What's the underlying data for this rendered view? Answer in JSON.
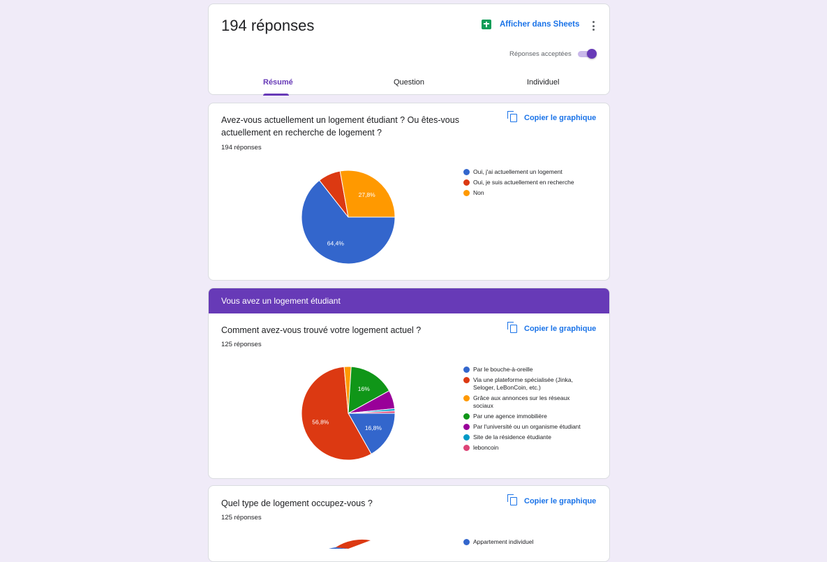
{
  "header": {
    "responses_title": "194 réponses",
    "sheets_label": "Afficher dans Sheets",
    "accept_label": "Réponses acceptées",
    "tabs": [
      "Résumé",
      "Question",
      "Individuel"
    ]
  },
  "copy_label": "Copier le graphique",
  "section_banner": "Vous avez un logement étudiant",
  "questions": [
    {
      "title_line1": "Avez-vous actuellement un logement étudiant ? Ou êtes-vous",
      "title_line2": "actuellement en recherche de logement ?",
      "count": "194 réponses",
      "legend": [
        "Oui, j'ai actuellement un logement",
        "Oui, je suis actuellement en recherche",
        "Non"
      ]
    },
    {
      "title": "Comment avez-vous trouvé votre logement actuel ?",
      "count": "125 réponses",
      "legend": [
        "Par le bouche-à-oreille",
        "Via une plateforme spécialisée (Jinka, Seloger, LeBonCoin, etc.)",
        "Grâce aux annonces sur les réseaux sociaux",
        "Par une agence immobilière",
        "Par l'université ou un organisme étudiant",
        "Site de la résidence étudiante",
        "leboncoin"
      ]
    },
    {
      "title": "Quel type de logement occupez-vous ?",
      "count": "125 réponses",
      "legend": [
        "Appartement individuel"
      ]
    }
  ],
  "chart_data": [
    {
      "type": "pie",
      "categories": [
        "Oui, j'ai actuellement un logement",
        "Oui, je suis actuellement en recherche",
        "Non"
      ],
      "values": [
        64.4,
        7.8,
        27.8
      ],
      "data_labels": [
        "64,4%",
        "",
        "27,8%"
      ],
      "colors": [
        "#3366cc",
        "#dc3912",
        "#ff9900"
      ]
    },
    {
      "type": "pie",
      "categories": [
        "Par le bouche-à-oreille",
        "Via une plateforme spécialisée (Jinka, Seloger, LeBonCoin, etc.)",
        "Grâce aux annonces sur les réseaux sociaux",
        "Par une agence immobilière",
        "Par l'université ou un organisme étudiant",
        "Site de la résidence étudiante",
        "leboncoin"
      ],
      "values": [
        16.8,
        56.8,
        2.4,
        16,
        6.4,
        0.8,
        0.8
      ],
      "data_labels": [
        "16,8%",
        "56,8%",
        "",
        "16%",
        "",
        "",
        ""
      ],
      "colors": [
        "#3366cc",
        "#dc3912",
        "#ff9900",
        "#109618",
        "#990099",
        "#0099c6",
        "#dd4477"
      ]
    }
  ],
  "colors": {
    "accent": "#673ab7",
    "link": "#1a73e8",
    "background": "#f0ebf8"
  },
  "icons": {
    "sheets": "sheets-icon",
    "more": "more-vert-icon",
    "copy": "copy-icon"
  }
}
